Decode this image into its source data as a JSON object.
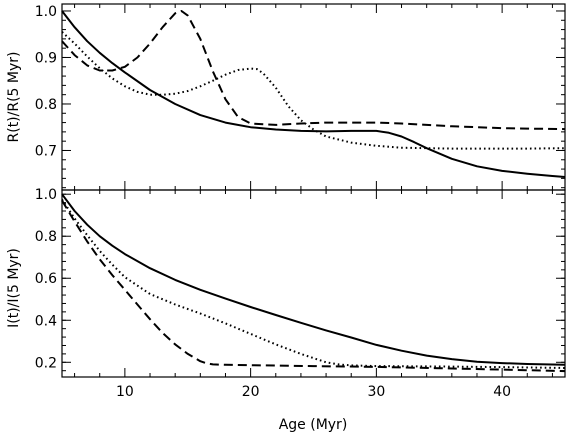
{
  "chart_data": [
    {
      "type": "line",
      "panel": "top",
      "xlabel": "",
      "ylabel": "R(t)/R(5 Myr)",
      "xlim": [
        5,
        45
      ],
      "ylim": [
        0.615,
        1.015
      ],
      "yticks": [
        0.7,
        0.8,
        0.9,
        1.0
      ],
      "yticklabels": [
        "0.7",
        "0.8",
        "0.9",
        "1.0"
      ],
      "xticks": [
        10,
        20,
        30,
        40
      ],
      "grid": false,
      "series": [
        {
          "style": "solid",
          "x": [
            5,
            6,
            7,
            8,
            9,
            10,
            12,
            14,
            16,
            18,
            20,
            22,
            24,
            26,
            28,
            30,
            31,
            32,
            33,
            34,
            36,
            38,
            40,
            42,
            44,
            45
          ],
          "y": [
            1.0,
            0.965,
            0.935,
            0.91,
            0.888,
            0.868,
            0.83,
            0.8,
            0.776,
            0.76,
            0.75,
            0.745,
            0.742,
            0.741,
            0.742,
            0.742,
            0.738,
            0.73,
            0.718,
            0.705,
            0.682,
            0.666,
            0.656,
            0.65,
            0.645,
            0.643
          ]
        },
        {
          "style": "dashed",
          "x": [
            5,
            6,
            7,
            8,
            9,
            10,
            11,
            12,
            13,
            14,
            14.5,
            15,
            16,
            17,
            18,
            19,
            20,
            22,
            24,
            26,
            28,
            30,
            32,
            34,
            36,
            38,
            40,
            42,
            45
          ],
          "y": [
            0.935,
            0.905,
            0.883,
            0.872,
            0.872,
            0.88,
            0.9,
            0.93,
            0.965,
            0.995,
            1.0,
            0.99,
            0.94,
            0.87,
            0.81,
            0.772,
            0.758,
            0.755,
            0.758,
            0.76,
            0.76,
            0.76,
            0.758,
            0.755,
            0.752,
            0.75,
            0.748,
            0.747,
            0.746
          ]
        },
        {
          "style": "dotted",
          "x": [
            5,
            6,
            7,
            8,
            9,
            10,
            11,
            12,
            13,
            14,
            15,
            16,
            17,
            18,
            19,
            20,
            20.5,
            21,
            22,
            23,
            24,
            25,
            26,
            28,
            30,
            32,
            34,
            36,
            38,
            40,
            42,
            45
          ],
          "y": [
            0.955,
            0.93,
            0.902,
            0.877,
            0.855,
            0.838,
            0.826,
            0.82,
            0.82,
            0.822,
            0.828,
            0.838,
            0.85,
            0.863,
            0.873,
            0.876,
            0.875,
            0.866,
            0.835,
            0.795,
            0.765,
            0.745,
            0.73,
            0.717,
            0.71,
            0.706,
            0.705,
            0.704,
            0.704,
            0.704,
            0.704,
            0.705
          ]
        }
      ]
    },
    {
      "type": "line",
      "panel": "bottom",
      "xlabel": "Age (Myr)",
      "ylabel": "I(t)/I(5 Myr)",
      "xlim": [
        5,
        45
      ],
      "ylim": [
        0.13,
        1.02
      ],
      "yticks": [
        0.2,
        0.4,
        0.6,
        0.8,
        1.0
      ],
      "yticklabels": [
        "0.2",
        "0.4",
        "0.6",
        "0.8",
        "1.0"
      ],
      "xticks": [
        10,
        20,
        30,
        40
      ],
      "xticklabels": [
        "10",
        "20",
        "30",
        "40"
      ],
      "grid": false,
      "series": [
        {
          "style": "solid",
          "x": [
            5,
            6,
            7,
            8,
            9,
            10,
            12,
            14,
            16,
            18,
            20,
            22,
            24,
            26,
            28,
            30,
            32,
            34,
            36,
            38,
            40,
            42,
            45
          ],
          "y": [
            1.0,
            0.92,
            0.855,
            0.8,
            0.755,
            0.715,
            0.648,
            0.592,
            0.545,
            0.503,
            0.463,
            0.425,
            0.388,
            0.352,
            0.318,
            0.283,
            0.255,
            0.232,
            0.215,
            0.203,
            0.196,
            0.192,
            0.188
          ]
        },
        {
          "style": "dashed",
          "x": [
            5,
            6,
            7,
            8,
            9,
            10,
            11,
            12,
            13,
            14,
            15,
            16,
            16.5,
            17,
            18,
            20,
            25,
            30,
            35,
            40,
            45
          ],
          "y": [
            0.97,
            0.87,
            0.775,
            0.69,
            0.615,
            0.545,
            0.475,
            0.405,
            0.34,
            0.285,
            0.24,
            0.205,
            0.195,
            0.19,
            0.188,
            0.186,
            0.182,
            0.178,
            0.172,
            0.165,
            0.158
          ]
        },
        {
          "style": "dotted",
          "x": [
            5,
            6,
            7,
            8,
            9,
            10,
            12,
            14,
            16,
            18,
            20,
            22,
            24,
            26,
            27,
            28,
            30,
            35,
            40,
            45
          ],
          "y": [
            0.975,
            0.885,
            0.805,
            0.73,
            0.665,
            0.605,
            0.525,
            0.475,
            0.432,
            0.385,
            0.335,
            0.285,
            0.24,
            0.2,
            0.19,
            0.185,
            0.182,
            0.18,
            0.177,
            0.173
          ]
        }
      ]
    }
  ]
}
